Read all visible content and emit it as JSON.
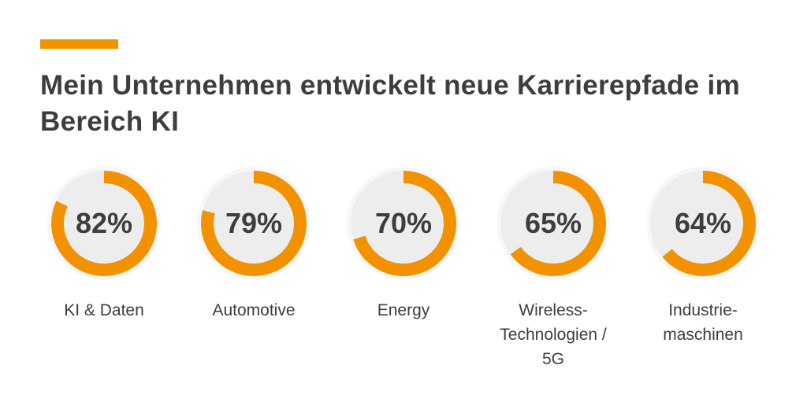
{
  "header": {
    "title": "Mein Unternehmen entwickelt neue Karrierepfade im Bereich KI"
  },
  "colors": {
    "accent": "#f39200",
    "track": "#ededed",
    "center": "#ededed",
    "text": "#3d3d3d"
  },
  "chart_data": {
    "type": "donut",
    "title": "Mein Unternehmen entwickelt neue Karrierepfade im Bereich KI",
    "categories": [
      "KI & Daten",
      "Automotive",
      "Energy",
      "Wireless-\nTechnologien /\n5G",
      "Industrie-\nmaschinen"
    ],
    "values": [
      82,
      79,
      70,
      65,
      64
    ],
    "value_labels": [
      "82%",
      "79%",
      "70%",
      "65%",
      "64%"
    ],
    "unit": "%",
    "max": 100
  }
}
